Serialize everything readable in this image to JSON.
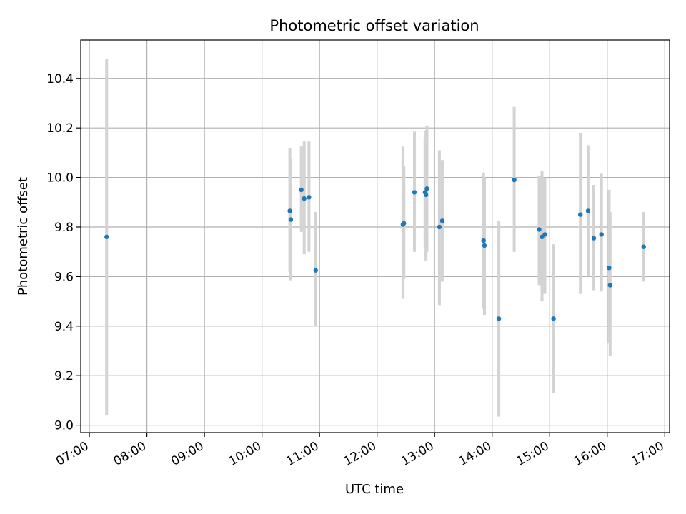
{
  "chart_data": {
    "type": "scatter",
    "title": "Photometric offset variation",
    "xlabel": "UTC time",
    "ylabel": "Photometric offset",
    "x_tick_labels": [
      "07:00",
      "08:00",
      "09:00",
      "10:00",
      "11:00",
      "12:00",
      "13:00",
      "14:00",
      "15:00",
      "16:00",
      "17:00"
    ],
    "y_tick_labels": [
      "9.0",
      "9.2",
      "9.4",
      "9.6",
      "9.8",
      "10.0",
      "10.2",
      "10.4"
    ],
    "xlim": [
      "06:51",
      "17:05"
    ],
    "ylim": [
      8.97,
      10.555
    ],
    "grid": true,
    "colors": {
      "point": "#1f77b4",
      "errorbar": "#d3d3d3",
      "grid": "#b0b0b0"
    },
    "points": [
      {
        "time": "07:18",
        "y": 9.76,
        "err_low": 9.04,
        "err_high": 10.48
      },
      {
        "time": "10:29",
        "y": 9.865,
        "err_low": 9.62,
        "err_high": 10.12
      },
      {
        "time": "10:30",
        "y": 9.83,
        "err_low": 9.585,
        "err_high": 10.075
      },
      {
        "time": "10:41",
        "y": 9.95,
        "err_low": 9.78,
        "err_high": 10.125
      },
      {
        "time": "10:44",
        "y": 9.915,
        "err_low": 9.69,
        "err_high": 10.145
      },
      {
        "time": "10:49",
        "y": 9.92,
        "err_low": 9.7,
        "err_high": 10.145
      },
      {
        "time": "10:56",
        "y": 9.625,
        "err_low": 9.4,
        "err_high": 9.86
      },
      {
        "time": "12:27",
        "y": 9.81,
        "err_low": 9.51,
        "err_high": 10.125
      },
      {
        "time": "12:28",
        "y": 9.815,
        "err_low": 9.59,
        "err_high": 10.045
      },
      {
        "time": "12:39",
        "y": 9.94,
        "err_low": 9.7,
        "err_high": 10.185
      },
      {
        "time": "12:50",
        "y": 9.94,
        "err_low": 9.72,
        "err_high": 10.16
      },
      {
        "time": "12:51",
        "y": 9.93,
        "err_low": 9.665,
        "err_high": 10.19
      },
      {
        "time": "12:52",
        "y": 9.955,
        "err_low": 9.7,
        "err_high": 10.21
      },
      {
        "time": "13:05",
        "y": 9.8,
        "err_low": 9.485,
        "err_high": 10.11
      },
      {
        "time": "13:08",
        "y": 9.825,
        "err_low": 9.58,
        "err_high": 10.07
      },
      {
        "time": "13:51",
        "y": 9.745,
        "err_low": 9.47,
        "err_high": 10.02
      },
      {
        "time": "13:52",
        "y": 9.725,
        "err_low": 9.445,
        "err_high": 10.0
      },
      {
        "time": "14:07",
        "y": 9.43,
        "err_low": 9.035,
        "err_high": 9.825
      },
      {
        "time": "14:23",
        "y": 9.99,
        "err_low": 9.7,
        "err_high": 10.285
      },
      {
        "time": "14:49",
        "y": 9.79,
        "err_low": 9.565,
        "err_high": 10.005
      },
      {
        "time": "14:52",
        "y": 9.76,
        "err_low": 9.5,
        "err_high": 10.025
      },
      {
        "time": "14:55",
        "y": 9.77,
        "err_low": 9.53,
        "err_high": 10.0
      },
      {
        "time": "15:04",
        "y": 9.43,
        "err_low": 9.13,
        "err_high": 9.73
      },
      {
        "time": "15:32",
        "y": 9.85,
        "err_low": 9.53,
        "err_high": 10.18
      },
      {
        "time": "15:40",
        "y": 9.865,
        "err_low": 9.6,
        "err_high": 10.13
      },
      {
        "time": "15:46",
        "y": 9.755,
        "err_low": 9.545,
        "err_high": 9.97
      },
      {
        "time": "15:54",
        "y": 9.77,
        "err_low": 9.54,
        "err_high": 10.015
      },
      {
        "time": "16:02",
        "y": 9.635,
        "err_low": 9.33,
        "err_high": 9.95
      },
      {
        "time": "16:03",
        "y": 9.565,
        "err_low": 9.28,
        "err_high": 9.86
      },
      {
        "time": "16:38",
        "y": 9.72,
        "err_low": 9.58,
        "err_high": 9.86
      }
    ]
  }
}
